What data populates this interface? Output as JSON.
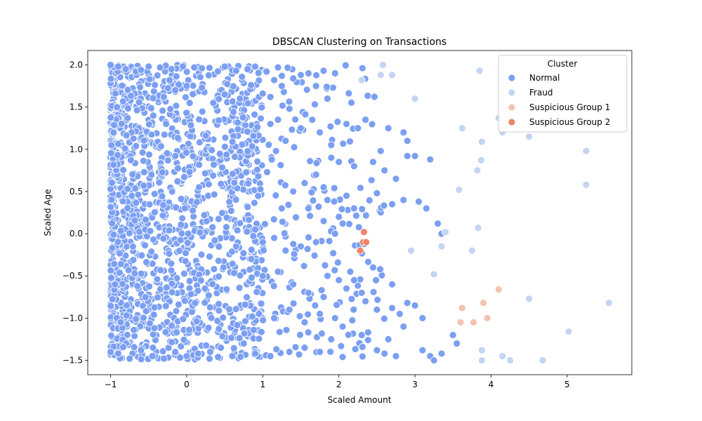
{
  "chart_data": {
    "type": "scatter",
    "title": "DBSCAN Clustering on Transactions",
    "xlabel": "Scaled Amount",
    "ylabel": "Scaled Age",
    "xlim": [
      -1.3,
      5.85
    ],
    "ylim": [
      -1.67,
      2.17
    ],
    "xticks": [
      -1,
      0,
      1,
      2,
      3,
      4,
      5
    ],
    "yticks": [
      -1.5,
      -1.0,
      -0.5,
      0.0,
      0.5,
      1.0,
      1.5,
      2.0
    ],
    "grid": false,
    "legend": {
      "title": "Cluster",
      "placement": "top-right",
      "entries": [
        "Normal",
        "Fraud",
        "Suspicious Group 1",
        "Suspicious Group 2"
      ]
    },
    "series": [
      {
        "name": "Normal",
        "color": "#7b9ff2",
        "note": "dense cloud",
        "points": [
          [
            -1.0,
            2.0
          ],
          [
            -0.9,
            1.98
          ],
          [
            -0.8,
            1.95
          ],
          [
            -0.6,
            1.94
          ],
          [
            -0.5,
            1.98
          ],
          [
            -0.35,
            1.97
          ],
          [
            -0.2,
            1.95
          ],
          [
            -0.05,
            1.98
          ],
          [
            0.1,
            1.97
          ],
          [
            0.2,
            1.96
          ],
          [
            0.5,
            1.98
          ],
          [
            0.65,
            1.93
          ],
          [
            0.8,
            1.95
          ],
          [
            0.9,
            1.98
          ],
          [
            1.05,
            1.92
          ],
          [
            1.2,
            1.97
          ],
          [
            1.4,
            1.84
          ],
          [
            1.5,
            1.88
          ],
          [
            1.6,
            1.9
          ],
          [
            1.8,
            1.93
          ],
          [
            1.95,
            1.9
          ],
          [
            1.15,
            1.82
          ],
          [
            1.25,
            1.75
          ],
          [
            0.95,
            1.62
          ],
          [
            1.0,
            1.66
          ],
          [
            1.1,
            1.62
          ],
          [
            0.7,
            1.6
          ],
          [
            0.5,
            1.65
          ],
          [
            0.35,
            1.55
          ],
          [
            0.2,
            1.73
          ],
          [
            0.0,
            1.75
          ],
          [
            -0.15,
            1.7
          ],
          [
            -0.3,
            1.62
          ],
          [
            1.7,
            1.75
          ],
          [
            1.85,
            1.6
          ],
          [
            1.35,
            1.48
          ],
          [
            1.2,
            1.35
          ],
          [
            1.1,
            1.3
          ],
          [
            1.3,
            1.1
          ],
          [
            1.5,
            1.25
          ],
          [
            1.65,
            1.35
          ],
          [
            1.75,
            1.2
          ],
          [
            1.9,
            1.05
          ],
          [
            2.1,
            1.3
          ],
          [
            2.25,
            1.25
          ],
          [
            2.35,
            1.35
          ],
          [
            2.55,
            0.98
          ],
          [
            2.65,
            1.25
          ],
          [
            2.85,
            1.2
          ],
          [
            2.9,
            1.1
          ],
          [
            3.0,
            0.92
          ],
          [
            3.2,
            0.88
          ],
          [
            2.9,
            0.92
          ],
          [
            2.75,
            0.65
          ],
          [
            2.6,
            0.75
          ],
          [
            2.45,
            0.85
          ],
          [
            2.2,
            0.8
          ],
          [
            2.0,
            0.85
          ],
          [
            1.9,
            0.9
          ],
          [
            1.7,
            0.7
          ],
          [
            1.8,
            0.55
          ],
          [
            1.55,
            0.6
          ],
          [
            1.4,
            0.5
          ],
          [
            1.25,
            0.3
          ],
          [
            1.6,
            0.3
          ],
          [
            1.85,
            0.4
          ],
          [
            2.1,
            0.45
          ],
          [
            2.2,
            0.3
          ],
          [
            2.5,
            0.48
          ],
          [
            2.7,
            0.35
          ],
          [
            2.85,
            0.4
          ],
          [
            3.05,
            0.38
          ],
          [
            3.15,
            0.3
          ],
          [
            3.3,
            0.12
          ],
          [
            3.35,
            0.0
          ],
          [
            2.0,
            0.2
          ],
          [
            2.05,
            0.12
          ],
          [
            1.8,
            0.15
          ],
          [
            1.95,
            0.0
          ],
          [
            1.7,
            -0.1
          ],
          [
            1.5,
            -0.15
          ],
          [
            1.3,
            -0.2
          ],
          [
            1.15,
            -0.05
          ],
          [
            1.0,
            -0.1
          ],
          [
            0.9,
            0.05
          ],
          [
            0.85,
            -0.3
          ],
          [
            1.0,
            -0.5
          ],
          [
            1.2,
            -0.45
          ],
          [
            1.4,
            -0.6
          ],
          [
            1.6,
            -0.7
          ],
          [
            1.8,
            -0.75
          ],
          [
            1.85,
            -0.5
          ],
          [
            2.0,
            -0.55
          ],
          [
            2.1,
            -0.65
          ],
          [
            2.2,
            -0.55
          ],
          [
            2.35,
            -0.8
          ],
          [
            2.5,
            -0.9
          ],
          [
            2.7,
            -0.88
          ],
          [
            2.8,
            -0.95
          ],
          [
            2.9,
            -0.82
          ],
          [
            3.0,
            -0.85
          ],
          [
            3.1,
            -1.0
          ],
          [
            2.85,
            -1.1
          ],
          [
            2.65,
            -1.25
          ],
          [
            2.5,
            -1.38
          ],
          [
            2.6,
            -1.42
          ],
          [
            2.75,
            -1.45
          ],
          [
            3.1,
            -1.38
          ],
          [
            3.2,
            -1.45
          ],
          [
            3.35,
            -1.42
          ],
          [
            3.5,
            -1.2
          ],
          [
            3.55,
            -1.3
          ],
          [
            3.25,
            -1.5
          ],
          [
            2.3,
            -1.2
          ],
          [
            2.05,
            -1.1
          ],
          [
            1.9,
            -1.25
          ],
          [
            1.75,
            -1.4
          ],
          [
            1.55,
            -1.35
          ],
          [
            1.35,
            -1.4
          ],
          [
            1.1,
            -1.45
          ],
          [
            0.9,
            -1.42
          ],
          [
            0.75,
            -1.3
          ],
          [
            0.6,
            -1.45
          ],
          [
            0.45,
            -1.35
          ],
          [
            0.3,
            -1.48
          ],
          [
            0.15,
            -1.42
          ],
          [
            0.0,
            -1.45
          ],
          [
            -0.15,
            -1.4
          ],
          [
            -0.3,
            -1.48
          ],
          [
            -0.45,
            -1.45
          ],
          [
            -0.6,
            -1.38
          ],
          [
            -0.75,
            -1.48
          ],
          [
            -0.9,
            -1.42
          ],
          [
            -1.0,
            -1.4
          ],
          [
            2.3,
            -0.7
          ],
          [
            2.45,
            -0.4
          ],
          [
            2.7,
            -0.6
          ],
          [
            2.15,
            -0.45
          ],
          [
            1.95,
            -1.0
          ],
          [
            1.75,
            -0.95
          ],
          [
            1.55,
            -1.05
          ],
          [
            1.35,
            -0.9
          ],
          [
            1.15,
            -1.0
          ],
          [
            0.95,
            -0.95
          ]
        ]
      },
      {
        "name": "Fraud",
        "color": "#c3d5f2",
        "points": [
          [
            2.3,
            1.82
          ],
          [
            2.55,
            1.88
          ],
          [
            2.58,
            2.0
          ],
          [
            2.7,
            1.88
          ],
          [
            3.0,
            1.6
          ],
          [
            3.85,
            1.93
          ],
          [
            3.62,
            1.25
          ],
          [
            3.88,
            1.09
          ],
          [
            4.1,
            1.37
          ],
          [
            4.15,
            1.2
          ],
          [
            4.5,
            1.15
          ],
          [
            5.25,
            0.98
          ],
          [
            3.58,
            0.52
          ],
          [
            3.82,
            0.75
          ],
          [
            3.87,
            0.87
          ],
          [
            5.25,
            0.58
          ],
          [
            3.83,
            0.07
          ],
          [
            3.4,
            0.02
          ],
          [
            3.35,
            -0.15
          ],
          [
            3.75,
            -0.2
          ],
          [
            2.95,
            -0.2
          ],
          [
            3.25,
            -0.48
          ],
          [
            4.5,
            -0.77
          ],
          [
            5.55,
            -0.82
          ],
          [
            5.02,
            -1.16
          ],
          [
            3.88,
            -1.38
          ],
          [
            3.88,
            -1.5
          ],
          [
            4.15,
            -1.45
          ],
          [
            4.25,
            -1.5
          ],
          [
            4.68,
            -1.5
          ]
        ]
      },
      {
        "name": "Suspicious Group 1",
        "color": "#f2c4ad",
        "points": [
          [
            4.1,
            -0.66
          ],
          [
            3.9,
            -0.82
          ],
          [
            3.62,
            -0.88
          ],
          [
            3.95,
            -1.0
          ],
          [
            3.6,
            -1.05
          ],
          [
            3.77,
            -1.05
          ]
        ]
      },
      {
        "name": "Suspicious Group 2",
        "color": "#ee8468",
        "points": [
          [
            2.33,
            0.02
          ],
          [
            2.32,
            -0.1
          ],
          [
            2.36,
            -0.1
          ],
          [
            2.28,
            -0.2
          ]
        ]
      }
    ]
  }
}
